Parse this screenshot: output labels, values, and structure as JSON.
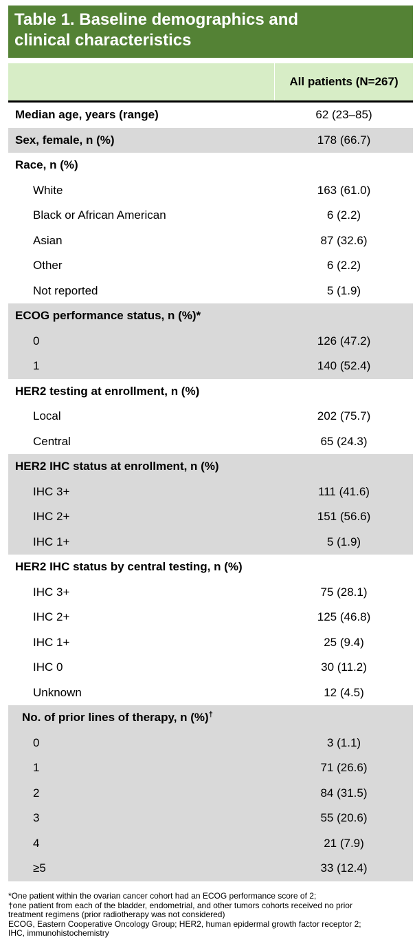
{
  "title_line1": "Table 1. Baseline demographics and",
  "title_line2": "clinical characteristics",
  "header_value": "All patients (N=267)",
  "sections": [
    {
      "label": "Median age, years (range)",
      "value": "62 (23–85)",
      "grey": false,
      "rows": []
    },
    {
      "label": "Sex, female, n (%)",
      "value": "178 (66.7)",
      "grey": true,
      "rows": []
    },
    {
      "label": "Race, n (%)",
      "value": "",
      "grey": false,
      "rows": [
        {
          "label": "White",
          "value": "163 (61.0)"
        },
        {
          "label": "Black or African American",
          "value": "6 (2.2)"
        },
        {
          "label": "Asian",
          "value": "87 (32.6)"
        },
        {
          "label": "Other",
          "value": "6 (2.2)"
        },
        {
          "label": "Not reported",
          "value": "5 (1.9)"
        }
      ]
    },
    {
      "label": "ECOG performance status, n (%)*",
      "value": "",
      "grey": true,
      "rows": [
        {
          "label": "0",
          "value": "126 (47.2)"
        },
        {
          "label": "1",
          "value": "140 (52.4)"
        }
      ]
    },
    {
      "label": "HER2 testing at enrollment, n (%)",
      "value": "",
      "grey": false,
      "rows": [
        {
          "label": "Local",
          "value": "202 (75.7)"
        },
        {
          "label": "Central",
          "value": "65 (24.3)"
        }
      ]
    },
    {
      "label": "HER2 IHC status at enrollment, n (%)",
      "value": "",
      "grey": true,
      "rows": [
        {
          "label": "IHC 3+",
          "value": "111 (41.6)"
        },
        {
          "label": "IHC 2+",
          "value": "151 (56.6)"
        },
        {
          "label": "IHC 1+",
          "value": "5 (1.9)"
        }
      ]
    },
    {
      "label": "HER2 IHC status by central testing, n (%)",
      "value": "",
      "grey": false,
      "rows": [
        {
          "label": "IHC 3+",
          "value": "75 (28.1)"
        },
        {
          "label": "IHC 2+",
          "value": "125 (46.8)"
        },
        {
          "label": "IHC 1+",
          "value": "25 (9.4)"
        },
        {
          "label": "IHC 0",
          "value": "30 (11.2)"
        },
        {
          "label": "Unknown",
          "value": "12 (4.5)"
        }
      ]
    },
    {
      "label": "No. of prior lines of therapy, n (%)",
      "label_sup": "†",
      "value": "",
      "grey": true,
      "rows": [
        {
          "label": "0",
          "value": "3 (1.1)"
        },
        {
          "label": "1",
          "value": "71 (26.6)"
        },
        {
          "label": "2",
          "value": "84 (31.5)"
        },
        {
          "label": "3",
          "value": "55 (20.6)"
        },
        {
          "label": "4",
          "value": "21 (7.9)"
        },
        {
          "label": "≥5",
          "value": "33 (12.4)"
        }
      ]
    }
  ],
  "footnotes": [
    "*One patient within the ovarian cancer cohort had an ECOG performance score of 2;",
    "†one patient from each of the bladder, endometrial, and other tumors cohorts received no prior",
    "treatment regimens (prior radiotherapy was not considered)",
    "ECOG, Eastern Cooperative Oncology Group; HER2, human epidermal growth factor receptor 2;",
    "IHC, immunohistochemistry"
  ]
}
